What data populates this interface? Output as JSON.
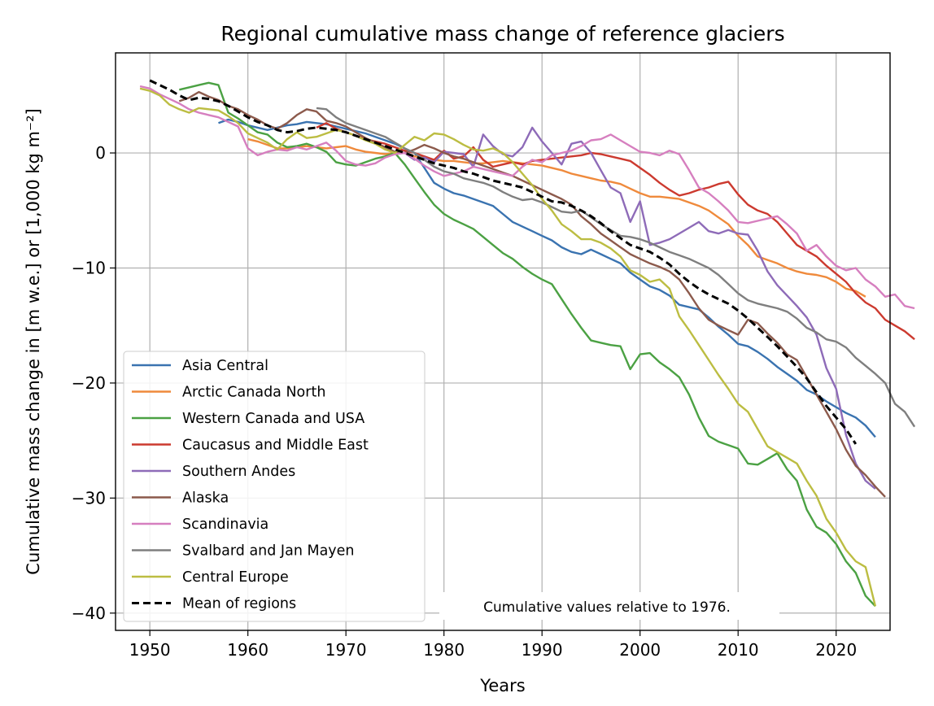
{
  "chart_data": {
    "type": "line",
    "title": "Regional cumulative mass change of reference glaciers",
    "xlabel": "Years",
    "ylabel": "Cumulative mass change in [m w.e.] or [1,000 kg m⁻²]",
    "xlim": [
      1946.5,
      2025.5
    ],
    "ylim": [
      -41.5,
      8.7
    ],
    "xticks": [
      1950,
      1960,
      1970,
      1980,
      1990,
      2000,
      2010,
      2020
    ],
    "yticks": [
      0,
      -10,
      -20,
      -30,
      -40
    ],
    "ytick_labels": [
      "0",
      "−10",
      "−20",
      "−30",
      "−40"
    ],
    "grid": true,
    "legend_position": "lower-left",
    "annotation": "Cumulative values relative to 1976.",
    "series": [
      {
        "name": "Asia Central",
        "color": "#3a73b0",
        "start": 1957,
        "values": [
          2.6,
          2.9,
          2.7,
          2.4,
          2.2,
          2.0,
          2.2,
          2.4,
          2.5,
          2.7,
          2.6,
          2.5,
          2.3,
          2.1,
          1.9,
          1.7,
          1.4,
          1.1,
          0.8,
          0.4,
          0.0,
          -1.3,
          -2.6,
          -3.1,
          -3.5,
          -3.7,
          -4.0,
          -4.3,
          -4.6,
          -5.3,
          -6.0,
          -6.4,
          -6.8,
          -7.2,
          -7.6,
          -8.2,
          -8.6,
          -8.8,
          -8.4,
          -8.8,
          -9.2,
          -9.6,
          -10.4,
          -11.0,
          -11.6,
          -11.9,
          -12.4,
          -13.2,
          -13.4,
          -13.6,
          -14.3,
          -15.1,
          -15.8,
          -16.6,
          -16.8,
          -17.3,
          -17.9,
          -18.6,
          -19.2,
          -19.8,
          -20.6,
          -21.0,
          -21.6,
          -22.1,
          -22.6,
          -23.0,
          -23.7,
          -24.7
        ]
      },
      {
        "name": "Arctic Canada North",
        "color": "#ef8a3c",
        "start": 1960,
        "values": [
          1.2,
          1.0,
          0.7,
          0.4,
          0.4,
          0.5,
          0.6,
          0.5,
          0.4,
          0.5,
          0.6,
          0.3,
          0.1,
          0.0,
          -0.1,
          0.0,
          0.0,
          -0.3,
          -0.4,
          -0.6,
          -0.7,
          -0.7,
          -0.8,
          -0.9,
          -0.9,
          -0.8,
          -0.7,
          -0.8,
          -0.9,
          -1.0,
          -1.1,
          -1.3,
          -1.5,
          -1.8,
          -2.0,
          -2.2,
          -2.4,
          -2.5,
          -2.7,
          -3.1,
          -3.5,
          -3.8,
          -3.8,
          -3.9,
          -4.0,
          -4.3,
          -4.6,
          -5.0,
          -5.6,
          -6.2,
          -7.2,
          -8.0,
          -9.0,
          -9.3,
          -9.6,
          -10.0,
          -10.3,
          -10.5,
          -10.6,
          -10.8,
          -11.2,
          -11.8,
          -12.0,
          -12.5
        ]
      },
      {
        "name": "Western Canada and USA",
        "color": "#4ba143",
        "start": 1953,
        "values": [
          5.5,
          5.7,
          5.9,
          6.1,
          5.9,
          3.5,
          3.0,
          2.4,
          1.8,
          1.6,
          0.9,
          0.5,
          0.6,
          0.8,
          0.5,
          0.1,
          -0.8,
          -1.0,
          -1.1,
          -0.8,
          -0.5,
          -0.3,
          0.0,
          -1.0,
          -2.2,
          -3.4,
          -4.5,
          -5.3,
          -5.8,
          -6.2,
          -6.6,
          -7.3,
          -8.0,
          -8.7,
          -9.2,
          -9.9,
          -10.5,
          -11.0,
          -11.4,
          -12.7,
          -14.0,
          -15.2,
          -16.3,
          -16.5,
          -16.7,
          -16.8,
          -18.8,
          -17.5,
          -17.4,
          -18.2,
          -18.8,
          -19.5,
          -21.0,
          -23.0,
          -24.6,
          -25.1,
          -25.4,
          -25.7,
          -27.0,
          -27.1,
          -26.6,
          -26.1,
          -27.5,
          -28.5,
          -31.0,
          -32.5,
          -33.0,
          -34.0,
          -35.5,
          -36.5,
          -38.5,
          -39.4
        ]
      },
      {
        "name": "Caucasus and Middle East",
        "color": "#cc3a2f",
        "start": 1967,
        "values": [
          2.2,
          2.6,
          2.1,
          1.8,
          1.5,
          1.2,
          1.0,
          0.8,
          0.5,
          0.2,
          0.0,
          -0.3,
          -0.6,
          0.2,
          -0.5,
          -0.3,
          0.5,
          -0.6,
          -1.2,
          -1.0,
          -0.8,
          -1.0,
          -0.7,
          -0.6,
          -0.5,
          -0.4,
          -0.3,
          -0.2,
          0.0,
          -0.1,
          -0.3,
          -0.5,
          -0.7,
          -1.3,
          -1.9,
          -2.6,
          -3.2,
          -3.7,
          -3.5,
          -3.2,
          -3.0,
          -2.7,
          -2.5,
          -3.6,
          -4.5,
          -5.0,
          -5.3,
          -6.0,
          -7.0,
          -8.0,
          -8.5,
          -9.0,
          -9.8,
          -10.5,
          -11.2,
          -12.2,
          -13.0,
          -13.5,
          -14.5,
          -15.0,
          -15.5,
          -16.2
        ]
      },
      {
        "name": "Southern Andes",
        "color": "#8e6bb8",
        "start": 1976,
        "values": [
          0.0,
          -0.6,
          -0.4,
          -0.8,
          0.1,
          0.0,
          -0.1,
          -1.2,
          1.6,
          0.6,
          -0.1,
          -0.3,
          0.5,
          2.2,
          1.0,
          0.0,
          -1.0,
          0.8,
          1.0,
          0.0,
          -1.5,
          -3.0,
          -3.5,
          -6.0,
          -4.2,
          -8.0,
          -7.8,
          -7.5,
          -7.0,
          -6.5,
          -6.0,
          -6.8,
          -7.0,
          -6.7,
          -7.0,
          -7.1,
          -8.5,
          -10.3,
          -11.5,
          -12.4,
          -13.3,
          -14.3,
          -15.8,
          -18.7,
          -20.5,
          -24.5,
          -27.0,
          -28.5,
          -29.2
        ]
      },
      {
        "name": "Alaska",
        "color": "#8c5a4c",
        "start": 1953,
        "values": [
          4.5,
          4.8,
          5.3,
          4.9,
          4.6,
          4.1,
          3.8,
          3.3,
          2.9,
          2.4,
          2.1,
          2.6,
          3.3,
          3.8,
          3.6,
          2.8,
          2.6,
          2.3,
          1.8,
          1.3,
          0.9,
          0.5,
          0.1,
          0.0,
          0.3,
          0.7,
          0.4,
          0.0,
          -0.3,
          -0.5,
          -0.8,
          -1.1,
          -1.4,
          -1.7,
          -2.0,
          -2.4,
          -2.8,
          -3.2,
          -3.6,
          -4.0,
          -4.5,
          -5.5,
          -6.2,
          -7.0,
          -7.6,
          -8.2,
          -8.8,
          -9.2,
          -9.6,
          -9.9,
          -10.3,
          -11.0,
          -12.2,
          -13.5,
          -14.5,
          -15.0,
          -15.4,
          -15.8,
          -14.5,
          -14.8,
          -15.7,
          -16.5,
          -17.5,
          -18.0,
          -19.5,
          -21.0,
          -22.5,
          -24.0,
          -25.8,
          -27.2,
          -28.0,
          -29.0,
          -29.9
        ]
      },
      {
        "name": "Scandinavia",
        "color": "#d67fbf",
        "start": 1949,
        "values": [
          5.8,
          5.6,
          5.1,
          4.7,
          4.3,
          3.8,
          3.5,
          3.3,
          3.1,
          2.7,
          2.3,
          0.4,
          -0.2,
          0.1,
          0.3,
          0.2,
          0.5,
          0.3,
          0.6,
          0.9,
          0.2,
          -0.7,
          -1.0,
          -1.1,
          -0.9,
          -0.4,
          -0.1,
          0.0,
          -0.5,
          -1.1,
          -1.6,
          -2.0,
          -1.8,
          -1.6,
          -1.2,
          -1.4,
          -1.6,
          -1.8,
          -2.0,
          -1.2,
          -0.6,
          -0.8,
          -0.2,
          0.0,
          0.2,
          0.6,
          1.1,
          1.2,
          1.6,
          1.1,
          0.6,
          0.1,
          0.0,
          -0.2,
          0.2,
          -0.1,
          -1.5,
          -3.0,
          -3.5,
          -4.2,
          -5.0,
          -6.0,
          -6.1,
          -5.9,
          -5.7,
          -5.5,
          -6.2,
          -7.0,
          -8.5,
          -8.0,
          -9.0,
          -9.8,
          -10.2,
          -10.0,
          -11.0,
          -11.6,
          -12.5,
          -12.3,
          -13.3,
          -13.5
        ]
      },
      {
        "name": "Svalbard and Jan Mayen",
        "color": "#7f7f7f",
        "start": 1967,
        "values": [
          3.9,
          3.8,
          3.1,
          2.6,
          2.3,
          2.0,
          1.7,
          1.4,
          0.9,
          0.4,
          0.0,
          -0.6,
          -1.2,
          -1.6,
          -1.8,
          -2.2,
          -2.4,
          -2.6,
          -2.9,
          -3.4,
          -3.8,
          -4.1,
          -4.0,
          -4.3,
          -4.7,
          -5.1,
          -5.2,
          -5.0,
          -5.6,
          -6.2,
          -6.7,
          -7.2,
          -7.3,
          -7.5,
          -7.8,
          -8.2,
          -8.6,
          -8.9,
          -9.2,
          -9.6,
          -10.0,
          -10.6,
          -11.4,
          -12.2,
          -12.8,
          -13.1,
          -13.3,
          -13.5,
          -13.8,
          -14.4,
          -15.2,
          -15.6,
          -16.2,
          -16.4,
          -16.9,
          -17.8,
          -18.5,
          -19.2,
          -20.0,
          -21.8,
          -22.5,
          -23.8
        ]
      },
      {
        "name": "Central Europe",
        "color": "#bcbd42",
        "start": 1949,
        "values": [
          5.6,
          5.4,
          5.0,
          4.2,
          3.8,
          3.5,
          3.9,
          3.8,
          3.7,
          3.2,
          2.6,
          1.7,
          1.3,
          0.9,
          0.3,
          1.2,
          1.8,
          1.3,
          1.4,
          1.7,
          2.0,
          1.8,
          1.5,
          1.1,
          0.8,
          0.3,
          0.0,
          0.7,
          1.4,
          1.1,
          1.7,
          1.6,
          1.2,
          0.7,
          0.3,
          0.2,
          0.4,
          0.0,
          -0.8,
          -1.8,
          -2.8,
          -4.0,
          -5.0,
          -6.2,
          -6.8,
          -7.5,
          -7.5,
          -7.8,
          -8.3,
          -9.0,
          -10.2,
          -10.6,
          -11.2,
          -11.0,
          -11.8,
          -14.2,
          -15.4,
          -16.7,
          -18.0,
          -19.3,
          -20.5,
          -21.8,
          -22.5,
          -24.0,
          -25.5,
          -26.0,
          -26.5,
          -27.0,
          -28.5,
          -29.8,
          -31.8,
          -33.0,
          -34.5,
          -35.5,
          -36.0,
          -39.4
        ]
      },
      {
        "name": "Mean of regions",
        "color": "#000000",
        "dashed": true,
        "start": 1950,
        "values": [
          6.3,
          5.9,
          5.5,
          5.0,
          4.6,
          4.8,
          4.7,
          4.5,
          4.1,
          3.6,
          3.1,
          2.7,
          2.4,
          2.0,
          1.8,
          1.9,
          2.1,
          2.2,
          2.1,
          2.0,
          1.8,
          1.5,
          1.2,
          0.9,
          0.6,
          0.3,
          0.0,
          -0.3,
          -0.6,
          -0.9,
          -1.1,
          -1.3,
          -1.6,
          -1.8,
          -2.1,
          -2.4,
          -2.6,
          -2.8,
          -3.0,
          -3.4,
          -3.8,
          -4.2,
          -4.3,
          -4.6,
          -5.0,
          -5.5,
          -6.1,
          -6.8,
          -7.4,
          -8.0,
          -8.3,
          -8.6,
          -9.1,
          -9.7,
          -10.5,
          -11.2,
          -11.8,
          -12.3,
          -12.7,
          -13.1,
          -13.7,
          -14.4,
          -15.2,
          -16.0,
          -16.8,
          -17.7,
          -18.6,
          -19.6,
          -20.8,
          -22.0,
          -23.0,
          -24.0,
          -25.3
        ]
      }
    ]
  }
}
